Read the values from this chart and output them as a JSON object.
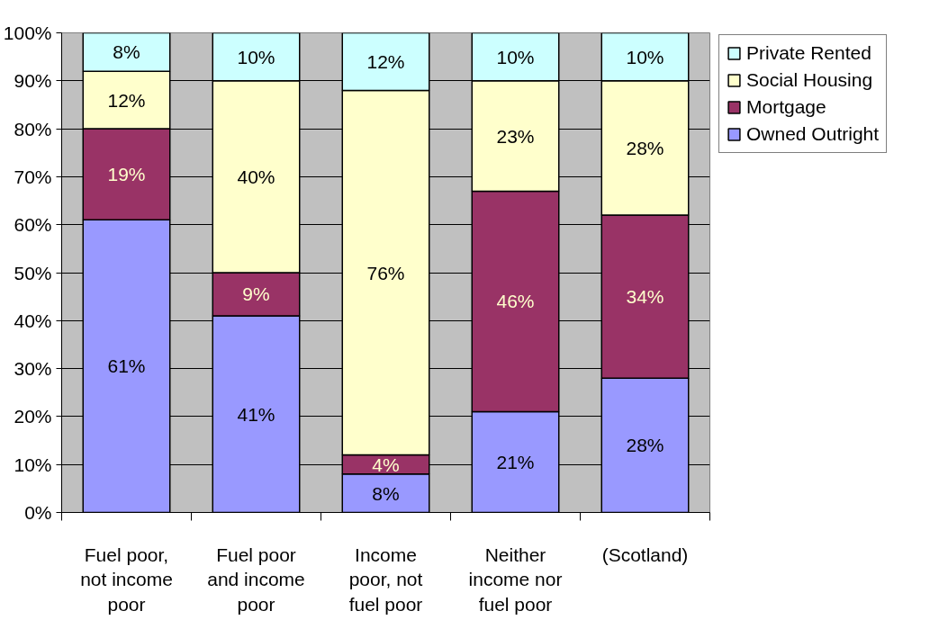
{
  "chart_data": {
    "type": "bar",
    "stacked": true,
    "categories": [
      "Fuel poor, not income poor",
      "Fuel poor and income poor",
      "Income poor, not fuel poor",
      "Neither income nor fuel poor",
      "(Scotland)"
    ],
    "series": [
      {
        "name": "Owned Outright",
        "color": "#9999ff",
        "values": [
          61,
          41,
          8,
          21,
          28
        ],
        "value_labels": [
          "61%",
          "41%",
          "8%",
          "21%",
          "28%"
        ]
      },
      {
        "name": "Mortgage",
        "color": "#993366",
        "values": [
          19,
          9,
          4,
          46,
          34
        ],
        "value_labels": [
          "19%",
          "9%",
          "4%",
          "46%",
          "34%"
        ]
      },
      {
        "name": "Social Housing",
        "color": "#ffffcc",
        "values": [
          12,
          40,
          76,
          23,
          28
        ],
        "value_labels": [
          "12%",
          "40%",
          "76%",
          "23%",
          "28%"
        ]
      },
      {
        "name": "Private Rented",
        "color": "#ccffff",
        "values": [
          8,
          10,
          12,
          10,
          10
        ],
        "value_labels": [
          "8%",
          "10%",
          "12%",
          "10%",
          "10%"
        ]
      }
    ],
    "ylim": [
      0,
      100
    ],
    "yticks": [
      {
        "value": 0,
        "label": "0%"
      },
      {
        "value": 10,
        "label": "10%"
      },
      {
        "value": 20,
        "label": "20%"
      },
      {
        "value": 30,
        "label": "30%"
      },
      {
        "value": 40,
        "label": "40%"
      },
      {
        "value": 50,
        "label": "50%"
      },
      {
        "value": 60,
        "label": "60%"
      },
      {
        "value": 70,
        "label": "70%"
      },
      {
        "value": 80,
        "label": "80%"
      },
      {
        "value": 90,
        "label": "90%"
      },
      {
        "value": 100,
        "label": "100%"
      }
    ],
    "grid": "y",
    "legend": "top right"
  }
}
